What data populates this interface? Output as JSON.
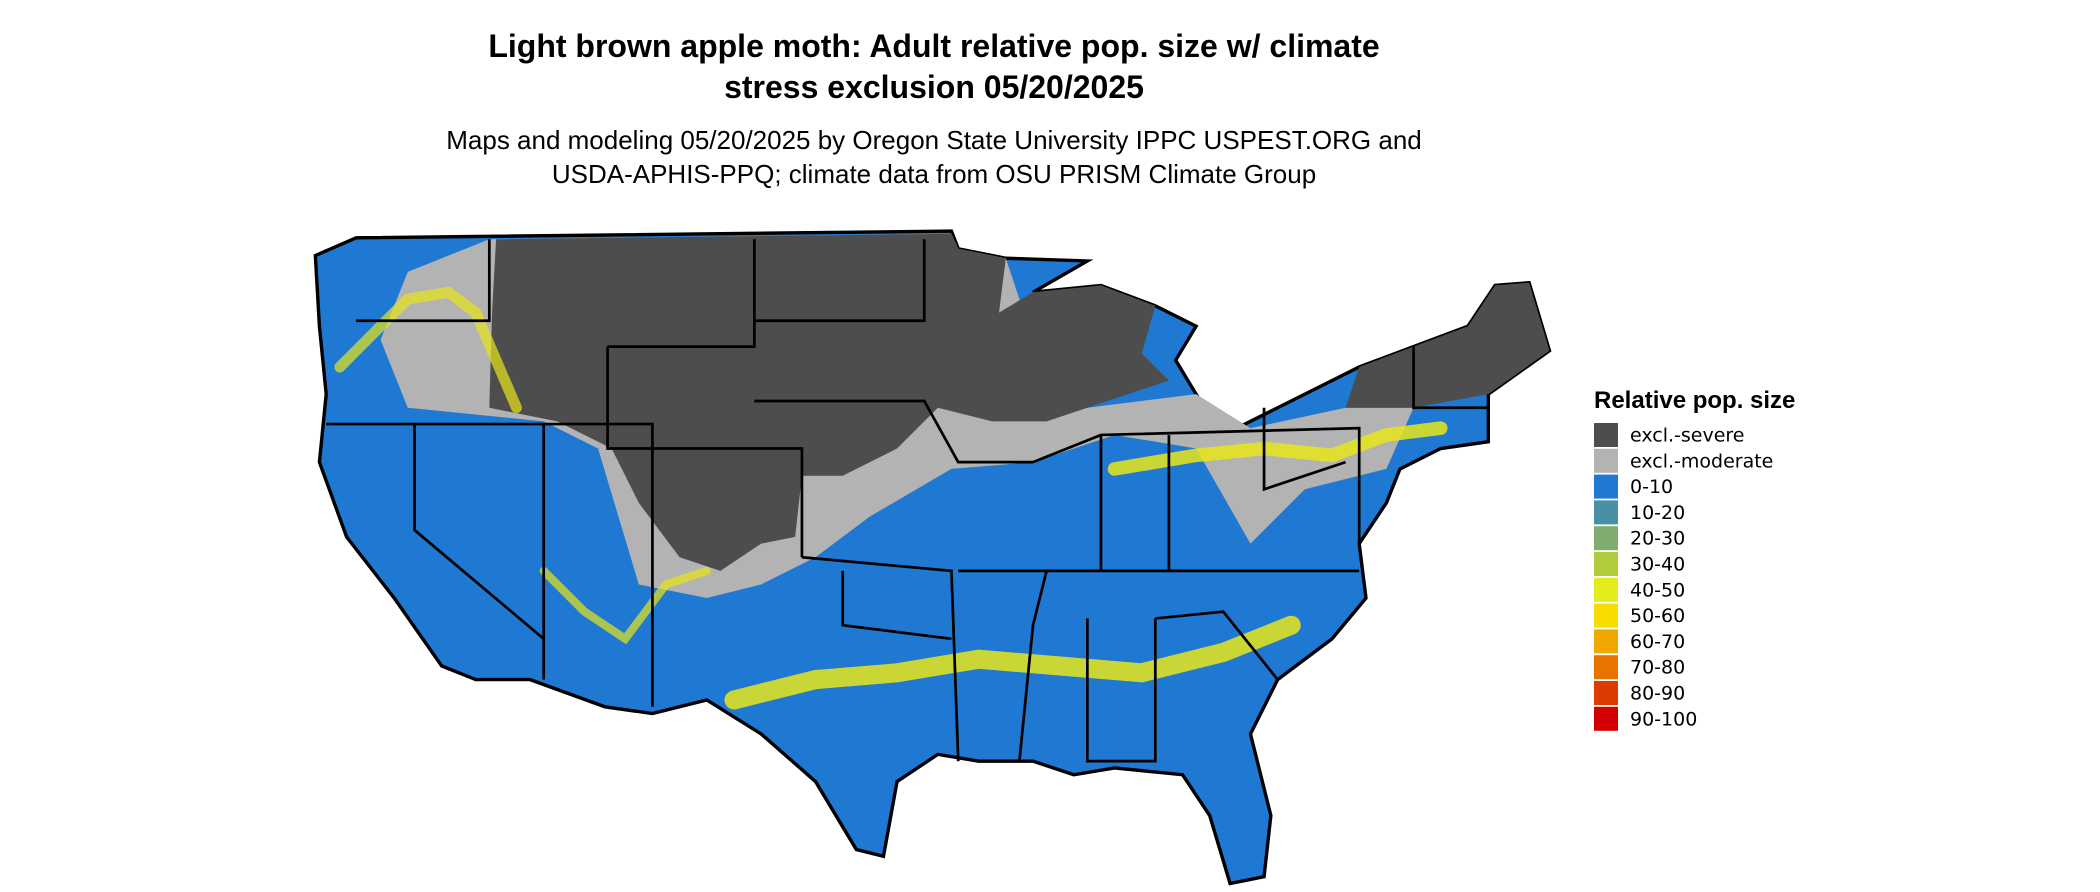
{
  "header": {
    "title": [
      "Light brown apple moth: Adult relative pop. size w/ climate",
      "stress exclusion 05/20/2025"
    ],
    "subtitle": [
      "Maps and modeling 05/20/2025 by Oregon State University IPPC USPEST.ORG and",
      "USDA-APHIS-PPQ; climate data from OSU PRISM Climate Group"
    ]
  },
  "legend": {
    "title": "Relative pop. size",
    "items": [
      {
        "label": "excl.-severe",
        "color": "#4d4d4d"
      },
      {
        "label": "excl.-moderate",
        "color": "#b3b3b3"
      },
      {
        "label": "0-10",
        "color": "#1f78d1"
      },
      {
        "label": "10-20",
        "color": "#4a90a4"
      },
      {
        "label": "20-30",
        "color": "#7fad6e"
      },
      {
        "label": "30-40",
        "color": "#b0cc3c"
      },
      {
        "label": "40-50",
        "color": "#e3ec1c"
      },
      {
        "label": "50-60",
        "color": "#f9dc00"
      },
      {
        "label": "60-70",
        "color": "#f0a800"
      },
      {
        "label": "70-80",
        "color": "#e87400"
      },
      {
        "label": "80-90",
        "color": "#dc3c00"
      },
      {
        "label": "90-100",
        "color": "#d40000"
      }
    ]
  }
}
